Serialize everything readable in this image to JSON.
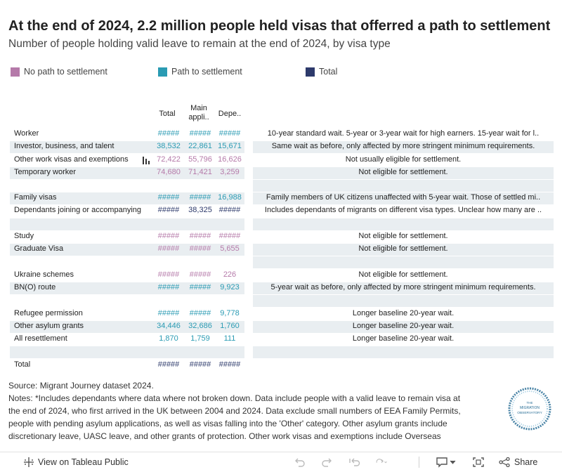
{
  "chart_data": {
    "type": "table",
    "title": "At the end of 2024, 2.2 million people held visas that offerred a path to settlement",
    "subtitle": "Number of people holding valid leave to remain at the end of 2024, by visa type",
    "legend": [
      {
        "label": "No path to settlement",
        "color": "#b57aa9"
      },
      {
        "label": "Path to settlement",
        "color": "#2a9bb3"
      },
      {
        "label": "Total",
        "color": "#2d3a6b"
      }
    ],
    "columns": [
      "Total",
      "Main appli..",
      "Depe.."
    ],
    "rows": [
      {
        "label": "Worker",
        "category": "path",
        "values": [
          "#####",
          "#####",
          "#####"
        ],
        "note": "10-year standard wait. 5-year or 3-year wait for high earners. 15-year wait for l.."
      },
      {
        "label": "Investor, business, and talent",
        "category": "path",
        "values": [
          "38,532",
          "22,861",
          "15,671"
        ],
        "note": "Same wait as before, only affected by more stringent minimum requirements."
      },
      {
        "label": "Other work visas and exemptions",
        "category": "nopath",
        "values": [
          "72,422",
          "55,796",
          "16,626"
        ],
        "note": "Not usually eligible for settlement."
      },
      {
        "label": "Temporary worker",
        "category": "nopath",
        "values": [
          "74,680",
          "71,421",
          "3,259"
        ],
        "note": "Not eligible for settlement."
      },
      {
        "label": "",
        "category": "blank",
        "values": [
          "",
          "",
          ""
        ],
        "note": ""
      },
      {
        "label": "Family visas",
        "category": "path",
        "values": [
          "#####",
          "#####",
          "16,988"
        ],
        "note": "Family members of UK citizens unaffected with 5-year wait. Those of settled mi.."
      },
      {
        "label": "Dependants joining or accompanying",
        "category": "total",
        "values": [
          "#####",
          "38,325",
          "#####"
        ],
        "note": "Includes dependants of migrants on different visa types. Unclear how many are .."
      },
      {
        "label": "",
        "category": "blank",
        "values": [
          "",
          "",
          ""
        ],
        "note": ""
      },
      {
        "label": "Study",
        "category": "nopath",
        "values": [
          "#####",
          "#####",
          "#####"
        ],
        "note": "Not eligible for settlement."
      },
      {
        "label": "Graduate Visa",
        "category": "nopath",
        "values": [
          "#####",
          "#####",
          "5,655"
        ],
        "note": "Not eligible for settlement."
      },
      {
        "label": "",
        "category": "blank",
        "values": [
          "",
          "",
          ""
        ],
        "note": ""
      },
      {
        "label": "Ukraine schemes",
        "category": "nopath",
        "values": [
          "#####",
          "#####",
          "226"
        ],
        "note": "Not eligible for settlement."
      },
      {
        "label": "BN(O) route",
        "category": "path",
        "values": [
          "#####",
          "#####",
          "9,923"
        ],
        "note": "5-year wait as before, only affected by more stringent minimum requirements."
      },
      {
        "label": "",
        "category": "blank",
        "values": [
          "",
          "",
          ""
        ],
        "note": ""
      },
      {
        "label": "Refugee permission",
        "category": "path",
        "values": [
          "#####",
          "#####",
          "9,778"
        ],
        "note": "Longer baseline 20-year wait."
      },
      {
        "label": "Other asylum grants",
        "category": "path",
        "values": [
          "34,446",
          "32,686",
          "1,760"
        ],
        "note": "Longer baseline 20-year wait."
      },
      {
        "label": "All resettlement",
        "category": "path",
        "values": [
          "1,870",
          "1,759",
          "111"
        ],
        "note": "Longer baseline 20-year wait."
      },
      {
        "label": "",
        "category": "blank",
        "values": [
          "",
          "",
          ""
        ],
        "note": ""
      },
      {
        "label": "Total",
        "category": "total",
        "values": [
          "#####",
          "#####",
          "#####"
        ],
        "note": ""
      }
    ]
  },
  "colors": {
    "nopath": "#b57aa9",
    "path": "#2a9bb3",
    "total": "#2d3a6b"
  },
  "footnotes": {
    "source": "Source: Migrant Journey dataset 2024.",
    "lines": [
      "Notes: *Includes dependants where data where not broken down. Data include people with a valid leave to remain visa at",
      "the end of 2024, who first arrived in the UK between 2004 and 2024. Data exclude small numbers of EEA Family Permits,",
      "people with pending asylum applications, as well as visas falling into the 'Other' category. Other asylum grants include",
      "discretionary leave, UASC leave, and other grants of protection. Other work visas and exemptions include Overseas"
    ]
  },
  "logo": {
    "line1": "THE",
    "line2": "MIGRATION",
    "line3": "OBSERVATORY"
  },
  "toolbar": {
    "view_label": "View on Tableau Public",
    "share_label": "Share"
  }
}
